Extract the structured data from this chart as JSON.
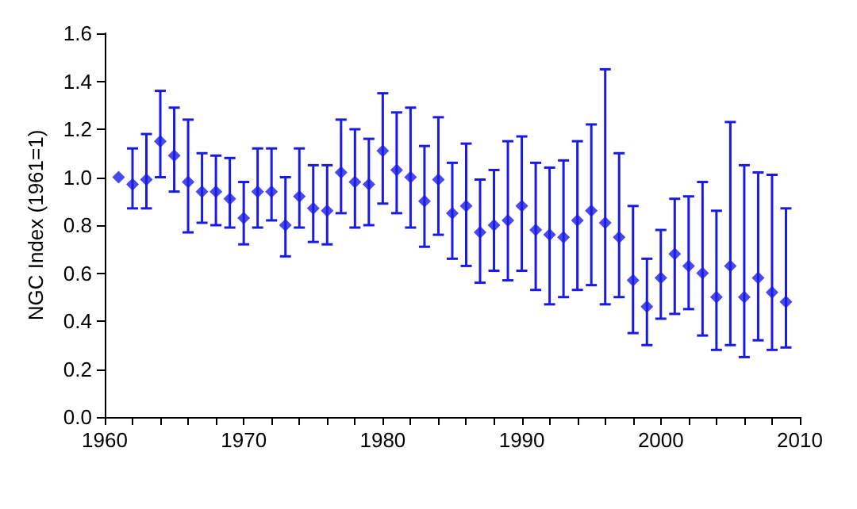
{
  "chart_data": {
    "type": "scatter",
    "ylabel": "NGC Index (1961=1)",
    "marker": "diamond",
    "x": [
      1961,
      1962,
      1963,
      1964,
      1965,
      1966,
      1967,
      1968,
      1969,
      1970,
      1971,
      1972,
      1973,
      1974,
      1975,
      1976,
      1977,
      1978,
      1979,
      1980,
      1981,
      1982,
      1983,
      1984,
      1985,
      1986,
      1987,
      1988,
      1989,
      1990,
      1991,
      1992,
      1993,
      1994,
      1995,
      1996,
      1997,
      1998,
      1999,
      2000,
      2001,
      2002,
      2003,
      2004,
      2005,
      2006,
      2007,
      2008,
      2009
    ],
    "series": [
      {
        "color": "#1a1ae6",
        "values": [
          1.0,
          0.97,
          0.99,
          1.15,
          1.09,
          0.98,
          0.94,
          0.94,
          0.91,
          0.83,
          0.94,
          0.94,
          0.8,
          0.92,
          0.87,
          0.86,
          1.02,
          0.98,
          0.97,
          1.11,
          1.03,
          1.0,
          0.9,
          0.99,
          0.85,
          0.88,
          0.77,
          0.8,
          0.82,
          0.88,
          0.78,
          0.76,
          0.75,
          0.82,
          0.86,
          0.81,
          0.75,
          0.57,
          0.46,
          0.58,
          0.68,
          0.63,
          0.6,
          0.5,
          0.63,
          0.5,
          0.58,
          0.52,
          0.48
        ],
        "errors": [
          null,
          [
            0.87,
            1.12
          ],
          [
            0.87,
            1.18
          ],
          [
            1.0,
            1.36
          ],
          [
            0.94,
            1.29
          ],
          [
            0.77,
            1.24
          ],
          [
            0.81,
            1.1
          ],
          [
            0.8,
            1.09
          ],
          [
            0.79,
            1.08
          ],
          [
            0.72,
            0.98
          ],
          [
            0.79,
            1.12
          ],
          [
            0.82,
            1.12
          ],
          [
            0.67,
            1.0
          ],
          [
            0.79,
            1.12
          ],
          [
            0.73,
            1.05
          ],
          [
            0.72,
            1.05
          ],
          [
            0.85,
            1.24
          ],
          [
            0.79,
            1.2
          ],
          [
            0.8,
            1.16
          ],
          [
            0.89,
            1.35
          ],
          [
            0.85,
            1.27
          ],
          [
            0.79,
            1.29
          ],
          [
            0.71,
            1.13
          ],
          [
            0.76,
            1.25
          ],
          [
            0.66,
            1.06
          ],
          [
            0.63,
            1.14
          ],
          [
            0.56,
            0.99
          ],
          [
            0.61,
            1.03
          ],
          [
            0.57,
            1.15
          ],
          [
            0.61,
            1.17
          ],
          [
            0.53,
            1.06
          ],
          [
            0.47,
            1.04
          ],
          [
            0.5,
            1.07
          ],
          [
            0.53,
            1.15
          ],
          [
            0.55,
            1.22
          ],
          [
            0.47,
            1.45
          ],
          [
            0.5,
            1.1
          ],
          [
            0.35,
            0.88
          ],
          [
            0.3,
            0.66
          ],
          [
            0.41,
            0.78
          ],
          [
            0.43,
            0.91
          ],
          [
            0.45,
            0.92
          ],
          [
            0.34,
            0.98
          ],
          [
            0.28,
            0.86
          ],
          [
            0.3,
            1.23
          ],
          [
            0.25,
            1.05
          ],
          [
            0.32,
            1.02
          ],
          [
            0.28,
            1.01
          ],
          [
            0.29,
            0.87
          ]
        ]
      }
    ],
    "xlim": [
      1960,
      2010
    ],
    "xticks": [
      1960,
      {
        "value": 1962,
        "label": null
      },
      {
        "value": 1964,
        "label": null
      },
      {
        "value": 1966,
        "label": null
      },
      {
        "value": 1968,
        "label": null
      },
      1970,
      {
        "value": 1972,
        "label": null
      },
      {
        "value": 1974,
        "label": null
      },
      {
        "value": 1976,
        "label": null
      },
      {
        "value": 1978,
        "label": null
      },
      1980,
      {
        "value": 1982,
        "label": null
      },
      {
        "value": 1984,
        "label": null
      },
      {
        "value": 1986,
        "label": null
      },
      {
        "value": 1988,
        "label": null
      },
      1990,
      {
        "value": 1992,
        "label": null
      },
      {
        "value": 1994,
        "label": null
      },
      {
        "value": 1996,
        "label": null
      },
      {
        "value": 1998,
        "label": null
      },
      2000,
      {
        "value": 2002,
        "label": null
      },
      {
        "value": 2004,
        "label": null
      },
      {
        "value": 2006,
        "label": null
      },
      {
        "value": 2008,
        "label": null
      },
      2010
    ],
    "ylim": [
      0,
      1.6
    ],
    "yticks": [
      {
        "value": 0,
        "label": "0.0"
      },
      {
        "value": 0.2,
        "label": "0.2"
      },
      {
        "value": 0.4,
        "label": "0.4"
      },
      {
        "value": 0.6,
        "label": "0.6"
      },
      {
        "value": 0.8,
        "label": "0.8"
      },
      {
        "value": 1.0,
        "label": "1.0"
      },
      {
        "value": 1.2,
        "label": "1.2"
      },
      {
        "value": 1.4,
        "label": "1.4"
      },
      {
        "value": 1.6,
        "label": "1.6"
      }
    ]
  }
}
